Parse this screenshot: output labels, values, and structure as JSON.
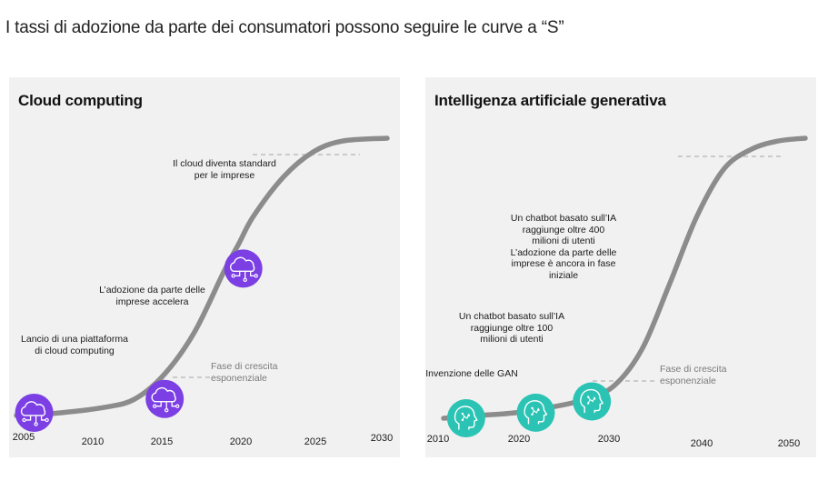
{
  "page": {
    "title": "I tassi di adozione da parte dei consumatori possono seguire le curve a “S”"
  },
  "colors": {
    "curve": "#8c8c8c",
    "cloud_icon_bg": "#7b3fe4",
    "genai_icon_bg": "#2bc4b4",
    "panel_bg": "#f1f1f1",
    "dash": "#b5b5b5"
  },
  "chart_data": [
    {
      "type": "line",
      "title": "Cloud computing",
      "x_ticks": [
        "2005",
        "2010",
        "2015",
        "2020",
        "2025",
        "2030"
      ],
      "xlim": [
        2005,
        2030
      ],
      "series": [
        {
          "x": [
            2005,
            2008,
            2011,
            2013,
            2015,
            2017,
            2019,
            2020,
            2021,
            2023,
            2025,
            2027,
            2030
          ],
          "values": [
            0.0,
            0.01,
            0.03,
            0.06,
            0.15,
            0.3,
            0.52,
            0.62,
            0.72,
            0.86,
            0.95,
            0.99,
            1.0
          ]
        }
      ],
      "markers": [
        {
          "x": 2006.2,
          "y": 0.01,
          "icon": "cloud-network-icon"
        },
        {
          "x": 2015.0,
          "y": 0.06,
          "icon": "cloud-network-icon"
        },
        {
          "x": 2020.3,
          "y": 0.53,
          "icon": "cloud-network-icon"
        }
      ],
      "annotations": [
        {
          "lines": [
            "Lancio di una piattaforma",
            "di cloud computing"
          ]
        },
        {
          "lines": [
            "L’adozione da parte delle",
            "imprese accelera"
          ]
        },
        {
          "lines": [
            "Il cloud diventa standard",
            "per le imprese"
          ]
        }
      ],
      "phase_label": [
        "Fase di crescita",
        "esponenziale"
      ],
      "grid": false,
      "legend": "none"
    },
    {
      "type": "line",
      "title": "Intelligenza artificiale generativa",
      "x_ticks": [
        "2010",
        "2020",
        "2030",
        "2040",
        "2050"
      ],
      "xlim": [
        2010,
        2050
      ],
      "series": [
        {
          "x": [
            2010,
            2014,
            2018,
            2022,
            2026,
            2029,
            2032,
            2035,
            2038,
            2041,
            2044,
            2047,
            2050
          ],
          "values": [
            0.0,
            0.01,
            0.02,
            0.04,
            0.07,
            0.12,
            0.25,
            0.48,
            0.72,
            0.89,
            0.96,
            0.99,
            1.0
          ]
        }
      ],
      "markers": [
        {
          "x": 2012.5,
          "y": 0.0,
          "icon": "ai-head-icon"
        },
        {
          "x": 2020.2,
          "y": 0.02,
          "icon": "ai-head-icon"
        },
        {
          "x": 2026.4,
          "y": 0.06,
          "icon": "ai-head-icon"
        }
      ],
      "annotations": [
        {
          "lines": [
            "Invenzione delle GAN"
          ]
        },
        {
          "lines": [
            "Un chatbot basato sull’IA",
            "raggiunge oltre 100",
            "milioni di utenti"
          ]
        },
        {
          "lines": [
            "Un chatbot basato sull’IA",
            "raggiunge oltre 400",
            "milioni di utenti",
            "L’adozione da parte delle",
            "imprese è ancora in fase",
            "iniziale"
          ]
        }
      ],
      "phase_label": [
        "Fase di crescita",
        "esponenziale"
      ],
      "grid": false,
      "legend": "none"
    }
  ]
}
